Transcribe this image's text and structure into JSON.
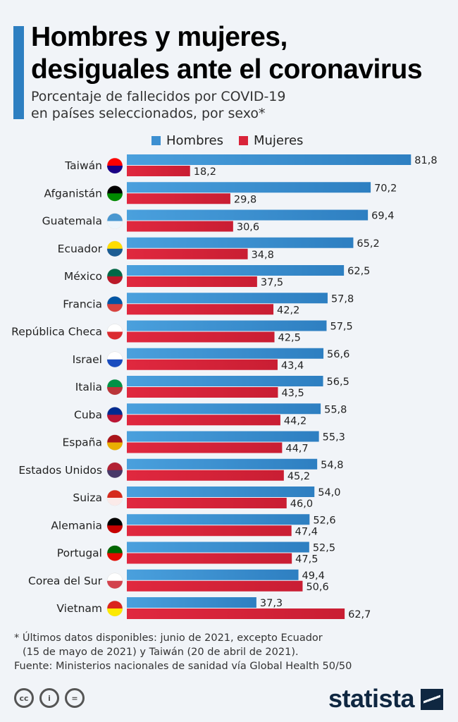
{
  "header": {
    "title_line1": "Hombres y mujeres,",
    "title_line2": "desiguales ante el coronavirus",
    "subtitle_line1": "Porcentaje de fallecidos por COVID-19",
    "subtitle_line2": "en países seleccionados, por sexo*"
  },
  "chart_data": {
    "type": "bar",
    "orientation": "horizontal",
    "categories": [
      "Taiwán",
      "Afganistán",
      "Guatemala",
      "Ecuador",
      "México",
      "Francia",
      "República Checa",
      "Israel",
      "Italia",
      "Cuba",
      "España",
      "Estados Unidos",
      "Suiza",
      "Alemania",
      "Portugal",
      "Corea del Sur",
      "Vietnam"
    ],
    "series": [
      {
        "name": "Hombres",
        "color": "#3d8fd1",
        "values": [
          81.8,
          70.2,
          69.4,
          65.2,
          62.5,
          57.8,
          57.5,
          56.6,
          56.5,
          55.8,
          55.3,
          54.8,
          54.0,
          52.6,
          52.5,
          49.4,
          37.3
        ],
        "labels": [
          "81,8",
          "70,2",
          "69,4",
          "65,2",
          "62,5",
          "57,8",
          "57,5",
          "56,6",
          "56,5",
          "55,8",
          "55,3",
          "54,8",
          "54,0",
          "52,6",
          "52,5",
          "49,4",
          "37,3"
        ]
      },
      {
        "name": "Mujeres",
        "color": "#d9243a",
        "values": [
          18.2,
          29.8,
          30.6,
          34.8,
          37.5,
          42.2,
          42.5,
          43.4,
          43.5,
          44.2,
          44.7,
          45.2,
          46.0,
          47.4,
          47.5,
          50.6,
          62.7
        ],
        "labels": [
          "18,2",
          "29,8",
          "30,6",
          "34,8",
          "37,5",
          "42,2",
          "42,5",
          "43,4",
          "43,5",
          "44,2",
          "44,7",
          "45,2",
          "46,0",
          "47,4",
          "47,5",
          "50,6",
          "62,7"
        ]
      }
    ],
    "legend": "top",
    "grid": false,
    "xlim": [
      0,
      100
    ]
  },
  "flags": [
    [
      "#fe0000",
      "#000095"
    ],
    [
      "#000000",
      "#009900"
    ],
    [
      "#4997d0",
      "#ffffff"
    ],
    [
      "#ffdd00",
      "#034ea2"
    ],
    [
      "#006847",
      "#ce1126"
    ],
    [
      "#0055a4",
      "#ef4135"
    ],
    [
      "#ffffff",
      "#d7141a"
    ],
    [
      "#ffffff",
      "#0038b8"
    ],
    [
      "#009246",
      "#ce2b37"
    ],
    [
      "#002a8f",
      "#cf142b"
    ],
    [
      "#aa151b",
      "#f1bf00"
    ],
    [
      "#b22234",
      "#3c3b6e"
    ],
    [
      "#d52b1e",
      "#ffffff"
    ],
    [
      "#000000",
      "#dd0000"
    ],
    [
      "#006600",
      "#ff0000"
    ],
    [
      "#ffffff",
      "#cd2e3a"
    ],
    [
      "#da251d",
      "#ffff00"
    ]
  ],
  "notes": {
    "line1": "* Últimos datos disponibles: junio de 2021, excepto Ecuador",
    "line2": "(15 de mayo de 2021) y Taiwán (20 de abril de 2021).",
    "source": "Fuente: Ministerios nacionales de sanidad vía Global Health 50/50"
  },
  "footer": {
    "license_icons": [
      "cc",
      "by",
      "nd"
    ],
    "brand": "statista"
  }
}
